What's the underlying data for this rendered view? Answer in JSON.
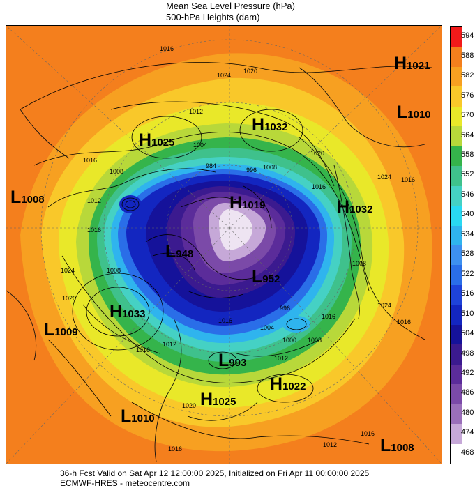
{
  "legend": {
    "mslp_label": "Mean Sea Level Pressure (hPa)",
    "heights_label": "500-hPa Heights (dam)"
  },
  "colorbar": {
    "levels": [
      "594",
      "588",
      "582",
      "576",
      "570",
      "564",
      "558",
      "552",
      "546",
      "540",
      "534",
      "528",
      "522",
      "516",
      "510",
      "504",
      "498",
      "492",
      "486",
      "480",
      "474",
      "468"
    ],
    "colors": [
      "#f21a1a",
      "#f47f1d",
      "#f7a021",
      "#f9c82a",
      "#e9e829",
      "#b8d83a",
      "#35b44b",
      "#3fc18c",
      "#45d1c4",
      "#29d9f2",
      "#2fb4ee",
      "#3d90f0",
      "#2a6ee8",
      "#1e43d9",
      "#1326c0",
      "#15129a",
      "#3b1a8f",
      "#5b2c9a",
      "#7b4aa8",
      "#9a6fba",
      "#c6a8d8",
      "#ffffff"
    ]
  },
  "systems": [
    {
      "type": "H",
      "value": "1021"
    },
    {
      "type": "L",
      "value": "1010"
    },
    {
      "type": "H",
      "value": "1032"
    },
    {
      "type": "H",
      "value": "1025"
    },
    {
      "type": "L",
      "value": "1008"
    },
    {
      "type": "H",
      "value": "1019"
    },
    {
      "type": "H",
      "value": "1032"
    },
    {
      "type": "L",
      "value": "948"
    },
    {
      "type": "L",
      "value": "952"
    },
    {
      "type": "H",
      "value": "1033"
    },
    {
      "type": "L",
      "value": "1009"
    },
    {
      "type": "L",
      "value": "993"
    },
    {
      "type": "H",
      "value": "1022"
    },
    {
      "type": "H",
      "value": "1025"
    },
    {
      "type": "L",
      "value": "1010"
    },
    {
      "type": "L",
      "value": "1008"
    }
  ],
  "contour_labels": [
    "1016",
    "1024",
    "1020",
    "1012",
    "1004",
    "1016",
    "1008",
    "996",
    "984",
    "1008",
    "1020",
    "1016",
    "1024",
    "1016",
    "1008",
    "1012",
    "1016",
    "1024",
    "1020",
    "1008",
    "1024",
    "1016",
    "1016",
    "996",
    "1000",
    "1008",
    "1012",
    "1004",
    "1016",
    "1012",
    "1016",
    "1016",
    "1020",
    "1012",
    "1016"
  ],
  "footer": {
    "line1": "36-h Fcst Valid on Sat Apr 12 12:00:00 2025, Initialized on Fri Apr 11 00:00:00 2025",
    "line2": "ECMWF-HRES  - meteocentre.com"
  }
}
